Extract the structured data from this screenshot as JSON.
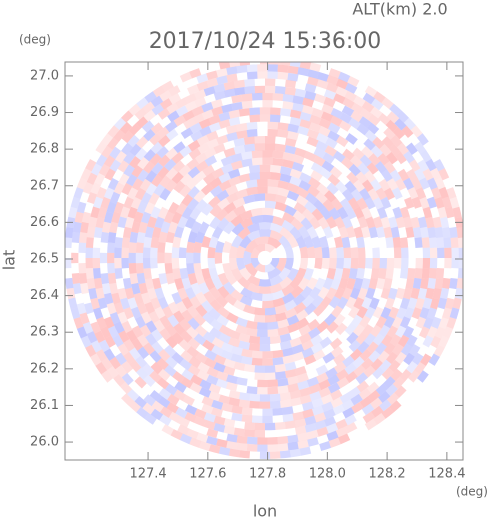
{
  "chart_data": {
    "type": "radar-ppi",
    "title": "2017/10/24 15:36:00",
    "subtitle": "ALT(km) 2.0",
    "x_label": "lon",
    "y_label": "lat",
    "x_unit": "(deg)",
    "y_unit": "(deg)",
    "xlim": [
      127.122,
      128.454
    ],
    "ylim": [
      25.951,
      27.038
    ],
    "xticks": [
      127.4,
      127.6,
      127.8,
      {
        "value": 128.0,
        "label": "128.0"
      },
      128.2,
      128.4
    ],
    "yticks": [
      {
        "value": 26.0,
        "label": "26.0"
      },
      26.1,
      26.2,
      26.3,
      26.4,
      26.5,
      26.6,
      26.7,
      26.8,
      26.9,
      {
        "value": 27.0,
        "label": "27.0"
      }
    ]
  }
}
